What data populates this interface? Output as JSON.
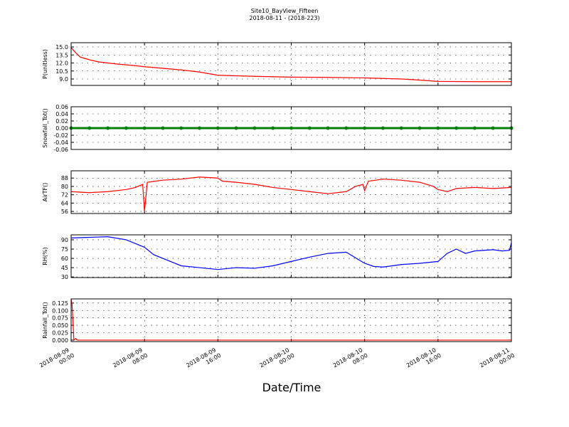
{
  "title": "Site10_BayView_Fifteen",
  "subtitle": "2018-08-11 - (2018-223)",
  "xlabel": "Date/Time",
  "chart_data": [
    {
      "type": "line",
      "ylabel": "P(unitless)",
      "color": "#ff0000",
      "grid": true,
      "x": [
        "2018-08-09 00:00",
        "2018-08-09 00:30",
        "2018-08-09 01:00",
        "2018-08-09 02:00",
        "2018-08-09 03:00",
        "2018-08-09 05:00",
        "2018-08-09 07:00",
        "2018-08-09 08:00",
        "2018-08-09 10:00",
        "2018-08-09 12:00",
        "2018-08-09 14:00",
        "2018-08-09 16:00",
        "2018-08-09 20:00",
        "2018-08-10 00:00",
        "2018-08-10 04:00",
        "2018-08-10 08:00",
        "2018-08-10 12:00",
        "2018-08-10 14:00",
        "2018-08-10 16:00",
        "2018-08-10 20:00",
        "2018-08-11 00:00"
      ],
      "values": [
        14.9,
        13.9,
        13.1,
        12.6,
        12.2,
        11.8,
        11.5,
        11.3,
        11.0,
        10.7,
        10.3,
        9.7,
        9.5,
        9.35,
        9.3,
        9.2,
        9.0,
        8.8,
        8.55,
        8.5,
        8.5
      ],
      "xlim": [
        "2018-08-09 00:00",
        "2018-08-11 00:00"
      ],
      "xticks": [
        "2018-08-09 00:00",
        "2018-08-09 08:00",
        "2018-08-09 16:00",
        "2018-08-10 00:00",
        "2018-08-10 08:00",
        "2018-08-10 16:00",
        "2018-08-11 00:00"
      ],
      "ylim": [
        7.8,
        15.8
      ],
      "yticks": [
        {
          "value": 9,
          "label": "9.0"
        },
        10.5,
        {
          "value": 12,
          "label": "12.0"
        },
        13.5,
        {
          "value": 15,
          "label": "15.0"
        }
      ]
    },
    {
      "type": "line",
      "ylabel": "Snowfall_Tot()",
      "color": "#008000",
      "grid": true,
      "markers": true,
      "x": [
        "2018-08-09 00:00",
        "2018-08-09 02:00",
        "2018-08-09 04:00",
        "2018-08-09 06:00",
        "2018-08-09 08:00",
        "2018-08-09 10:00",
        "2018-08-09 12:00",
        "2018-08-09 14:00",
        "2018-08-09 16:00",
        "2018-08-09 18:00",
        "2018-08-09 20:00",
        "2018-08-09 22:00",
        "2018-08-10 00:00",
        "2018-08-10 02:00",
        "2018-08-10 04:00",
        "2018-08-10 06:00",
        "2018-08-10 08:00",
        "2018-08-10 10:00",
        "2018-08-10 12:00",
        "2018-08-10 14:00",
        "2018-08-10 16:00",
        "2018-08-10 18:00",
        "2018-08-10 20:00",
        "2018-08-10 22:00",
        "2018-08-11 00:00"
      ],
      "values": [
        0,
        0,
        0,
        0,
        0,
        0,
        0,
        0,
        0,
        0,
        0,
        0,
        0,
        0,
        0,
        0,
        0,
        0,
        0,
        0,
        0,
        0,
        0,
        0,
        0
      ],
      "xlim": [
        "2018-08-09 00:00",
        "2018-08-11 00:00"
      ],
      "xticks": [
        "2018-08-09 00:00",
        "2018-08-09 08:00",
        "2018-08-09 16:00",
        "2018-08-10 00:00",
        "2018-08-10 08:00",
        "2018-08-10 16:00",
        "2018-08-11 00:00"
      ],
      "ylim": [
        -0.06,
        0.06
      ],
      "yticks": [
        {
          "value": -0.06,
          "label": "-0.06"
        },
        {
          "value": -0.04,
          "label": "-0.04"
        },
        {
          "value": -0.02,
          "label": "-0.02"
        },
        {
          "value": 0,
          "label": "0.00"
        },
        {
          "value": 0.02,
          "label": "0.02"
        },
        {
          "value": 0.04,
          "label": "0.04"
        },
        {
          "value": 0.06,
          "label": "0.06"
        }
      ]
    },
    {
      "type": "line",
      "ylabel": "AirTF()",
      "color": "#ff0000",
      "grid": true,
      "x": [
        "2018-08-09 00:00",
        "2018-08-09 02:00",
        "2018-08-09 04:00",
        "2018-08-09 06:00",
        "2018-08-09 07:00",
        "2018-08-09 07:48",
        "2018-08-09 08:00",
        "2018-08-09 08:18",
        "2018-08-09 10:00",
        "2018-08-09 12:00",
        "2018-08-09 14:00",
        "2018-08-09 16:00",
        "2018-08-09 16:30",
        "2018-08-09 18:00",
        "2018-08-09 20:00",
        "2018-08-09 22:00",
        "2018-08-10 00:00",
        "2018-08-10 02:00",
        "2018-08-10 04:00",
        "2018-08-10 06:00",
        "2018-08-10 07:00",
        "2018-08-10 07:48",
        "2018-08-10 08:00",
        "2018-08-10 08:24",
        "2018-08-10 10:00",
        "2018-08-10 12:00",
        "2018-08-10 14:00",
        "2018-08-10 15:30",
        "2018-08-10 16:00",
        "2018-08-10 17:00",
        "2018-08-10 18:00",
        "2018-08-10 20:00",
        "2018-08-10 22:00",
        "2018-08-11 00:00"
      ],
      "values": [
        75,
        74,
        75,
        77,
        79,
        82,
        56,
        84,
        86,
        87,
        89,
        88,
        85,
        84,
        82,
        79,
        77,
        75,
        73,
        75,
        80,
        82,
        76,
        85,
        87,
        86,
        84,
        80,
        77,
        75,
        78,
        79,
        78,
        79
      ],
      "xlim": [
        "2018-08-09 00:00",
        "2018-08-11 00:00"
      ],
      "xticks": [
        "2018-08-09 00:00",
        "2018-08-09 08:00",
        "2018-08-09 16:00",
        "2018-08-10 00:00",
        "2018-08-10 08:00",
        "2018-08-10 16:00",
        "2018-08-11 00:00"
      ],
      "ylim": [
        54,
        95
      ],
      "yticks": [
        56,
        64,
        72,
        80,
        88
      ]
    },
    {
      "type": "line",
      "ylabel": "RH(%)",
      "color": "#0000ff",
      "grid": true,
      "x": [
        "2018-08-09 00:00",
        "2018-08-09 02:00",
        "2018-08-09 04:00",
        "2018-08-09 06:00",
        "2018-08-09 08:00",
        "2018-08-09 09:00",
        "2018-08-09 10:00",
        "2018-08-09 12:00",
        "2018-08-09 14:00",
        "2018-08-09 16:00",
        "2018-08-09 18:00",
        "2018-08-09 20:00",
        "2018-08-09 22:00",
        "2018-08-10 00:00",
        "2018-08-10 02:00",
        "2018-08-10 04:00",
        "2018-08-10 06:00",
        "2018-08-10 08:00",
        "2018-08-10 09:00",
        "2018-08-10 10:00",
        "2018-08-10 12:00",
        "2018-08-10 14:00",
        "2018-08-10 16:00",
        "2018-08-10 17:00",
        "2018-08-10 18:00",
        "2018-08-10 19:00",
        "2018-08-10 20:00",
        "2018-08-10 22:00",
        "2018-08-10 23:00",
        "2018-08-10 23:48",
        "2018-08-11 00:00"
      ],
      "values": [
        93,
        94,
        95,
        90,
        78,
        66,
        60,
        48,
        45,
        42,
        45,
        44,
        48,
        55,
        62,
        68,
        70,
        52,
        47,
        46,
        50,
        52,
        55,
        68,
        75,
        68,
        72,
        74,
        72,
        73,
        85
      ],
      "xlim": [
        "2018-08-09 00:00",
        "2018-08-11 00:00"
      ],
      "xticks": [
        "2018-08-09 00:00",
        "2018-08-09 08:00",
        "2018-08-09 16:00",
        "2018-08-10 00:00",
        "2018-08-10 08:00",
        "2018-08-10 16:00",
        "2018-08-11 00:00"
      ],
      "ylim": [
        29,
        98
      ],
      "yticks": [
        30,
        45,
        60,
        75,
        90
      ]
    },
    {
      "type": "line",
      "ylabel": "Rainfall_Tot()",
      "color": "#ff0000",
      "grid": true,
      "x": [
        "2018-08-09 00:00",
        "2018-08-09 00:06",
        "2018-08-09 00:18",
        "2018-08-09 00:30",
        "2018-08-09 00:42",
        "2018-08-09 02:00",
        "2018-08-11 00:00"
      ],
      "values": [
        0.138,
        0.12,
        0,
        0.005,
        0,
        0,
        0
      ],
      "xlim": [
        "2018-08-09 00:00",
        "2018-08-11 00:00"
      ],
      "xticks": [
        "2018-08-09 00:00",
        "2018-08-09 08:00",
        "2018-08-09 16:00",
        "2018-08-10 00:00",
        "2018-08-10 08:00",
        "2018-08-10 16:00",
        "2018-08-11 00:00"
      ],
      "ylim": [
        -0.005,
        0.139
      ],
      "yticks": [
        {
          "value": 0,
          "label": "0.000"
        },
        0.025,
        {
          "value": 0.05,
          "label": "0.050"
        },
        0.075,
        {
          "value": 0.1,
          "label": "0.100"
        },
        0.125
      ]
    }
  ]
}
